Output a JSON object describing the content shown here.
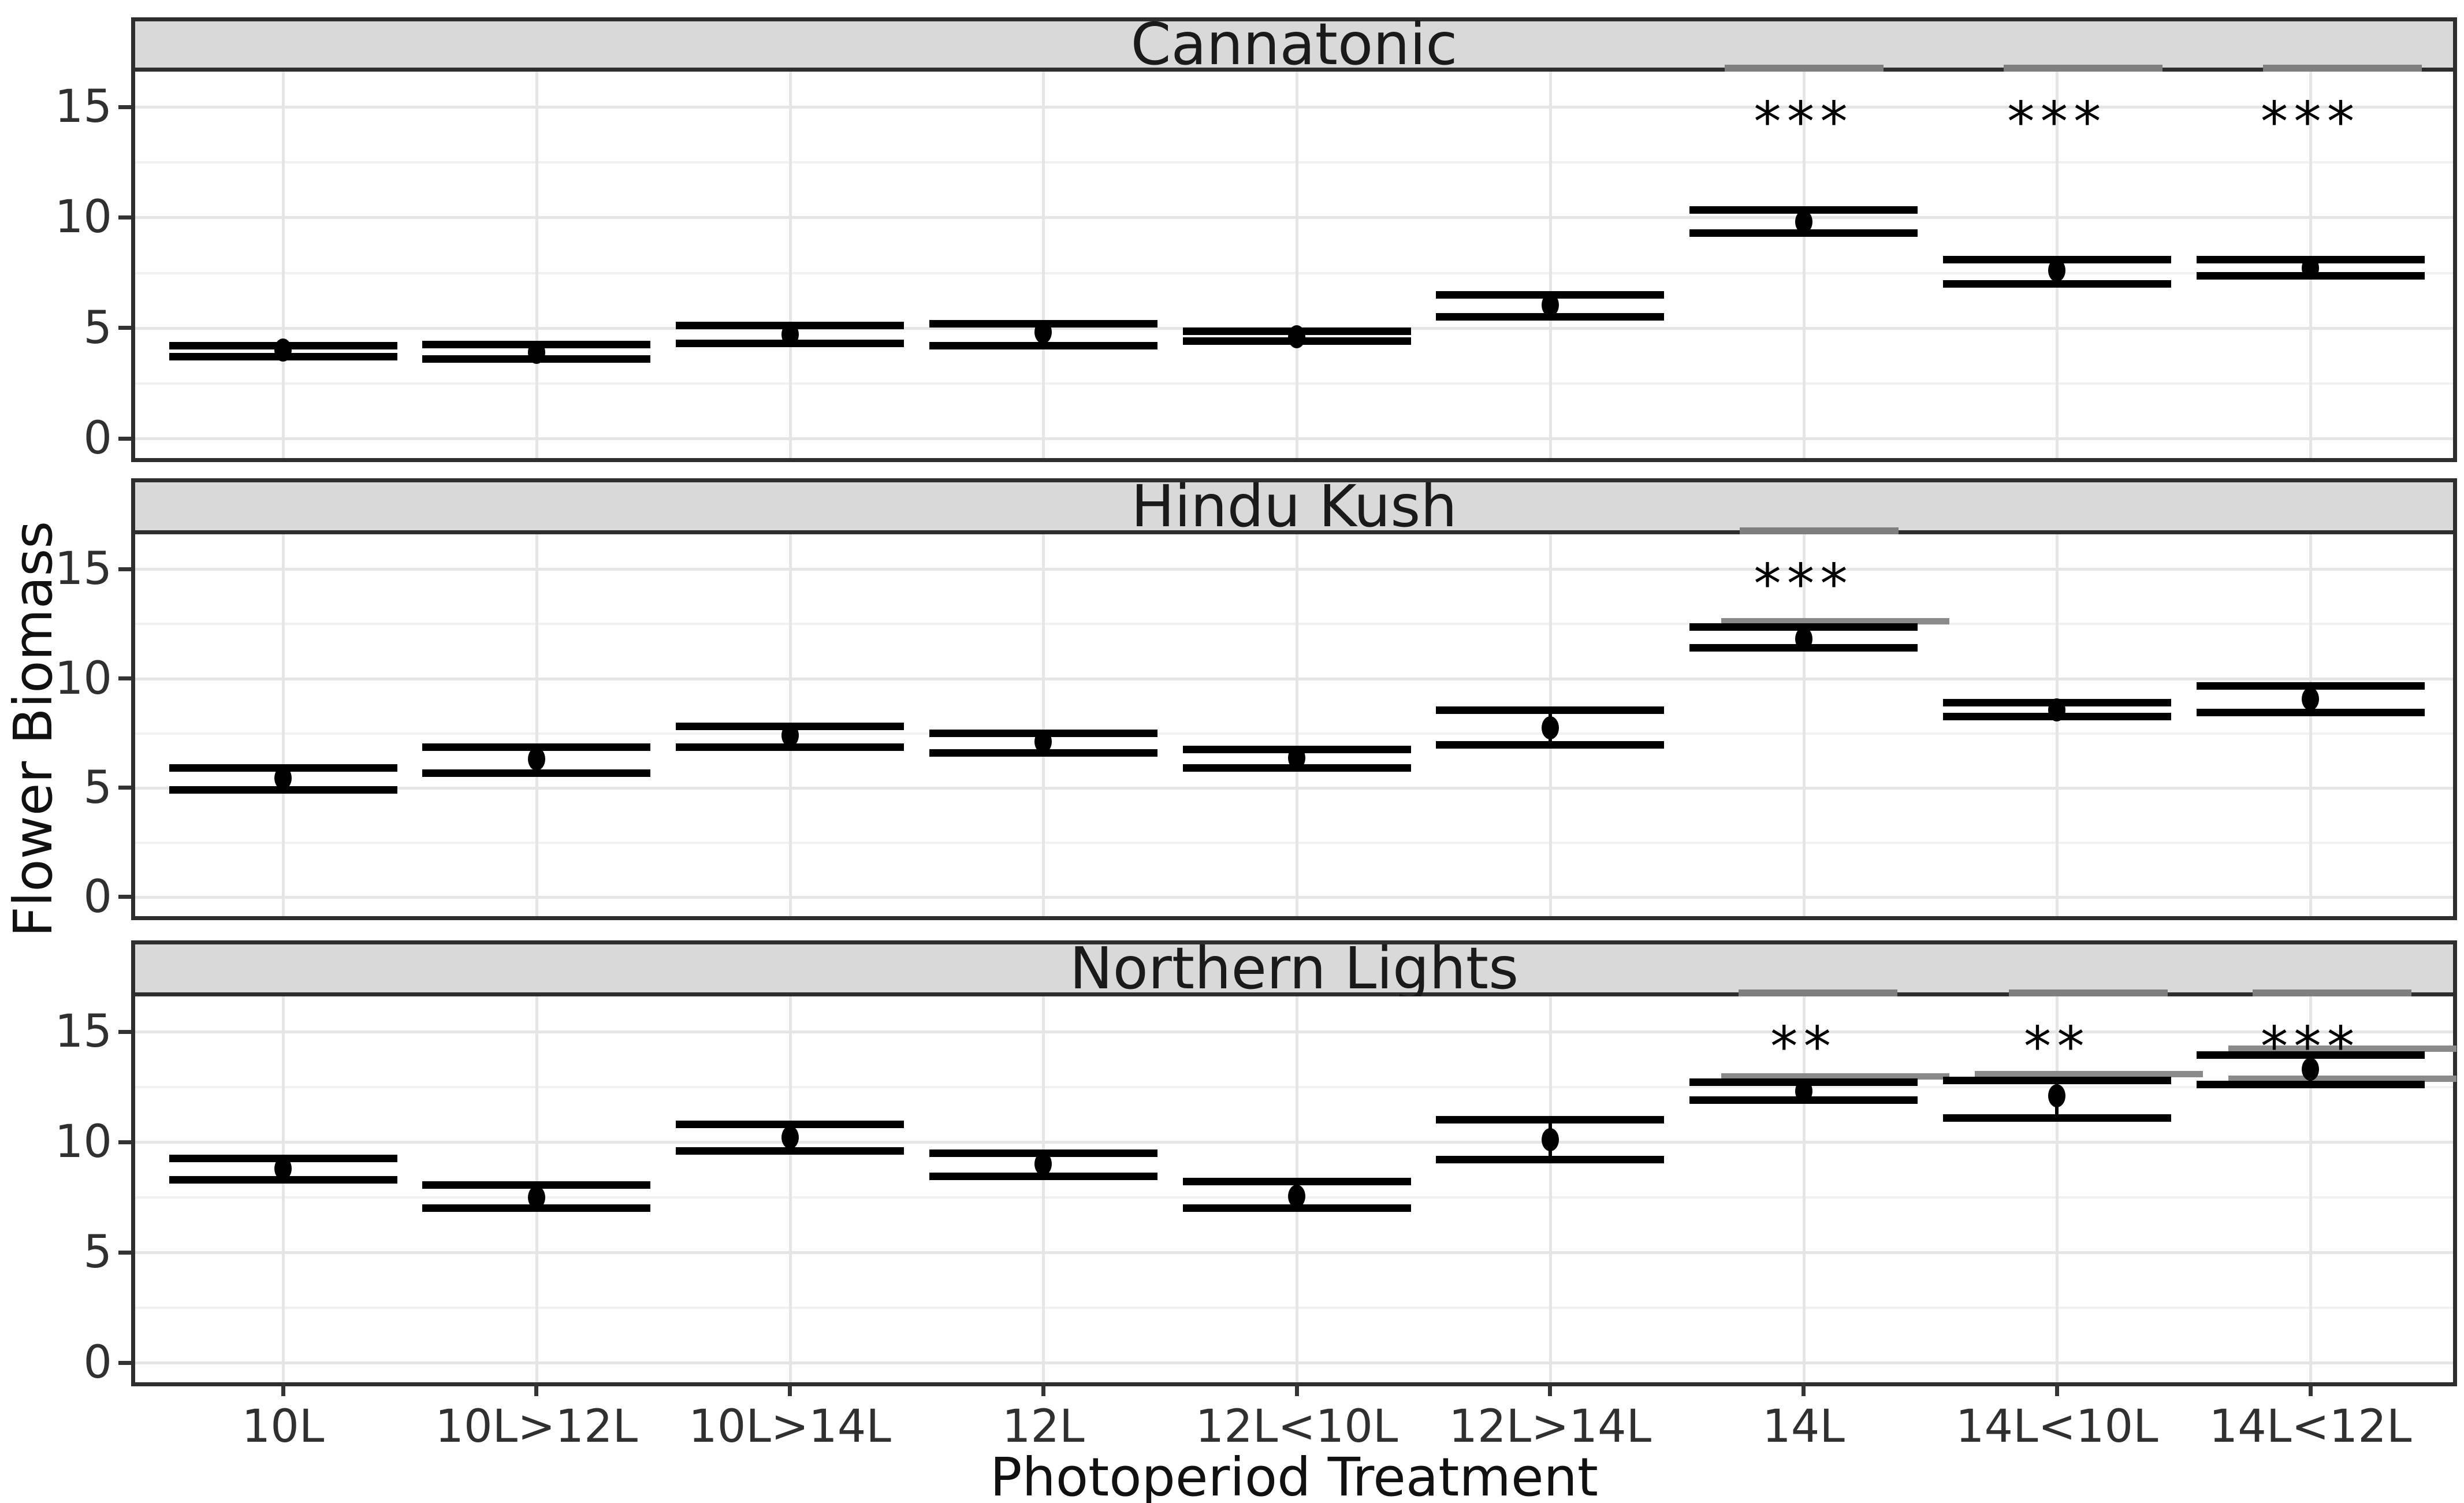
{
  "chart_data": {
    "type": "pointrange_faceted",
    "title": "",
    "xlabel": "Photoperiod Treatment",
    "ylabel": "Flower Biomass",
    "ylim": [
      0,
      15
    ],
    "yticks": [
      15,
      10,
      5,
      0
    ],
    "ytick_labels": [
      "15",
      "10",
      "5",
      "0"
    ],
    "grid": "on",
    "legend": "none",
    "categories": [
      "10L",
      "10L>12L",
      "10L>14L",
      "12L",
      "12L<10L",
      "12L>14L",
      "14L",
      "14L<10L",
      "14L<12L"
    ],
    "point_color": "#000000",
    "overlay_gray": "#8a8a8a",
    "strip_fill": "#d9d9d9",
    "panels": [
      {
        "name": "Cannatonic",
        "points": [
          {
            "treatment": "10L",
            "mean": 4.0,
            "lower": 3.7,
            "upper": 4.2,
            "sig": null,
            "clipped_top": false,
            "clip_dx": 0,
            "gray_shadow": null
          },
          {
            "treatment": "10L>12L",
            "mean": 3.9,
            "lower": 3.6,
            "upper": 4.25,
            "sig": null,
            "clipped_top": false,
            "clip_dx": 0,
            "gray_shadow": null
          },
          {
            "treatment": "10L>14L",
            "mean": 4.7,
            "lower": 4.3,
            "upper": 5.1,
            "sig": null,
            "clipped_top": false,
            "clip_dx": 0,
            "gray_shadow": null
          },
          {
            "treatment": "12L",
            "mean": 4.8,
            "lower": 4.2,
            "upper": 5.2,
            "sig": null,
            "clipped_top": false,
            "clip_dx": 0,
            "gray_shadow": null
          },
          {
            "treatment": "12L<10L",
            "mean": 4.6,
            "lower": 4.4,
            "upper": 4.85,
            "sig": null,
            "clipped_top": false,
            "clip_dx": 0,
            "gray_shadow": null
          },
          {
            "treatment": "12L>14L",
            "mean": 6.05,
            "lower": 5.5,
            "upper": 6.5,
            "sig": null,
            "clipped_top": false,
            "clip_dx": 0,
            "gray_shadow": null
          },
          {
            "treatment": "14L",
            "mean": 9.8,
            "lower": 9.3,
            "upper": 10.35,
            "sig": "***",
            "clipped_top": true,
            "clip_dx": 0,
            "gray_shadow": null
          },
          {
            "treatment": "14L<10L",
            "mean": 7.6,
            "lower": 7.0,
            "upper": 8.1,
            "sig": "***",
            "clipped_top": true,
            "clip_dx": 45,
            "gray_shadow": null
          },
          {
            "treatment": "14L<12L",
            "mean": 7.7,
            "lower": 7.35,
            "upper": 8.1,
            "sig": "***",
            "clipped_top": true,
            "clip_dx": 55,
            "gray_shadow": null
          }
        ]
      },
      {
        "name": "Hindu Kush",
        "points": [
          {
            "treatment": "10L",
            "mean": 5.45,
            "lower": 4.9,
            "upper": 5.9,
            "sig": null,
            "clipped_top": false,
            "clip_dx": 0,
            "gray_shadow": null
          },
          {
            "treatment": "10L>12L",
            "mean": 6.3,
            "lower": 5.65,
            "upper": 6.85,
            "sig": null,
            "clipped_top": false,
            "clip_dx": 0,
            "gray_shadow": null
          },
          {
            "treatment": "10L>14L",
            "mean": 7.4,
            "lower": 6.85,
            "upper": 7.8,
            "sig": null,
            "clipped_top": false,
            "clip_dx": 0,
            "gray_shadow": null
          },
          {
            "treatment": "12L",
            "mean": 7.1,
            "lower": 6.6,
            "upper": 7.5,
            "sig": null,
            "clipped_top": false,
            "clip_dx": 0,
            "gray_shadow": null
          },
          {
            "treatment": "12L<10L",
            "mean": 6.35,
            "lower": 5.9,
            "upper": 6.75,
            "sig": null,
            "clipped_top": false,
            "clip_dx": 0,
            "gray_shadow": null
          },
          {
            "treatment": "12L>14L",
            "mean": 7.75,
            "lower": 6.95,
            "upper": 8.55,
            "sig": null,
            "clipped_top": false,
            "clip_dx": 0,
            "gray_shadow": null
          },
          {
            "treatment": "14L",
            "mean": 11.8,
            "lower": 11.4,
            "upper": 12.35,
            "sig": "***",
            "clipped_top": true,
            "clip_dx": 26,
            "gray_shadow": "upper"
          },
          {
            "treatment": "14L<10L",
            "mean": 8.55,
            "lower": 8.25,
            "upper": 8.9,
            "sig": null,
            "clipped_top": false,
            "clip_dx": 0,
            "gray_shadow": null
          },
          {
            "treatment": "14L<12L",
            "mean": 9.05,
            "lower": 8.45,
            "upper": 9.65,
            "sig": null,
            "clipped_top": false,
            "clip_dx": 0,
            "gray_shadow": null
          }
        ]
      },
      {
        "name": "Northern Lights",
        "points": [
          {
            "treatment": "10L",
            "mean": 8.8,
            "lower": 8.3,
            "upper": 9.25,
            "sig": null,
            "clipped_top": false,
            "clip_dx": 0,
            "gray_shadow": null
          },
          {
            "treatment": "10L>12L",
            "mean": 7.5,
            "lower": 7.0,
            "upper": 8.05,
            "sig": null,
            "clipped_top": false,
            "clip_dx": 0,
            "gray_shadow": null
          },
          {
            "treatment": "10L>14L",
            "mean": 10.2,
            "lower": 9.6,
            "upper": 10.8,
            "sig": null,
            "clipped_top": false,
            "clip_dx": 0,
            "gray_shadow": null
          },
          {
            "treatment": "12L",
            "mean": 9.0,
            "lower": 8.45,
            "upper": 9.5,
            "sig": null,
            "clipped_top": false,
            "clip_dx": 0,
            "gray_shadow": null
          },
          {
            "treatment": "12L<10L",
            "mean": 7.55,
            "lower": 7.0,
            "upper": 8.2,
            "sig": null,
            "clipped_top": false,
            "clip_dx": 0,
            "gray_shadow": null
          },
          {
            "treatment": "12L>14L",
            "mean": 10.1,
            "lower": 9.2,
            "upper": 11.0,
            "sig": null,
            "clipped_top": false,
            "clip_dx": 0,
            "gray_shadow": null
          },
          {
            "treatment": "14L",
            "mean": 12.3,
            "lower": 11.9,
            "upper": 12.7,
            "sig": "**",
            "clipped_top": true,
            "clip_dx": 24,
            "gray_shadow": "upper"
          },
          {
            "treatment": "14L<10L",
            "mean": 12.1,
            "lower": 11.1,
            "upper": 12.8,
            "sig": "**",
            "clipped_top": true,
            "clip_dx": 54,
            "gray_shadow": "upper"
          },
          {
            "treatment": "14L<12L",
            "mean": 13.3,
            "lower": 12.6,
            "upper": 13.95,
            "sig": "***",
            "clipped_top": true,
            "clip_dx": 37,
            "gray_shadow": "both"
          }
        ]
      }
    ]
  }
}
